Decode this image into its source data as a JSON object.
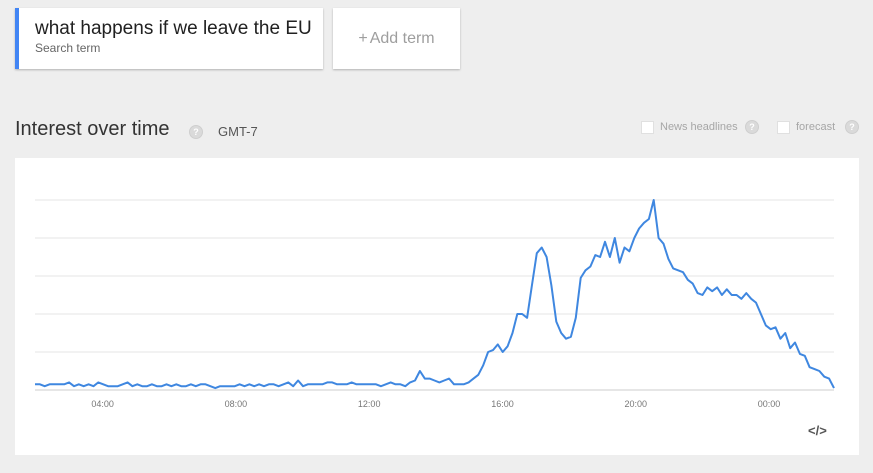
{
  "search_term": {
    "value": "what happens if we leave the EU",
    "sublabel": "Search term"
  },
  "add_term": {
    "plus": "+",
    "label": "Add term"
  },
  "section": {
    "title": "Interest over time",
    "help": "?",
    "timezone": "GMT-7"
  },
  "options": {
    "news_headlines": {
      "label": "News headlines",
      "help": "?"
    },
    "forecast": {
      "label": "forecast",
      "help": "?"
    }
  },
  "embed": {
    "icon": "embed-code-icon",
    "text": "</>"
  },
  "colors": {
    "accent": "#4285f4",
    "line": "#3f87e0",
    "grid": "#e6e6e6"
  },
  "chart_data": {
    "type": "line",
    "title": "",
    "xlabel": "",
    "ylabel": "",
    "ylim": [
      0,
      100
    ],
    "grid": true,
    "x_ticks": [
      "04:00",
      "08:00",
      "12:00",
      "16:00",
      "20:00",
      "00:00"
    ],
    "x_tick_hours": [
      4,
      8,
      12,
      16,
      20,
      24
    ],
    "x_range_hours": [
      1.97,
      25.95
    ],
    "series": [
      {
        "name": "what happens if we leave the EU",
        "values": [
          3,
          3,
          2,
          3,
          3,
          3,
          3,
          4,
          2,
          3,
          2,
          3,
          2,
          4,
          3,
          2,
          2,
          2,
          3,
          4,
          2,
          3,
          2,
          2,
          3,
          2,
          2,
          3,
          2,
          3,
          2,
          2,
          3,
          2,
          3,
          3,
          2,
          1,
          2,
          2,
          2,
          2,
          3,
          2,
          3,
          2,
          3,
          2,
          3,
          3,
          2,
          3,
          4,
          2,
          5,
          2,
          3,
          3,
          3,
          3,
          4,
          4,
          3,
          3,
          3,
          4,
          3,
          3,
          3,
          3,
          3,
          2,
          3,
          4,
          3,
          3,
          2,
          4,
          5,
          10,
          6,
          6,
          5,
          4,
          5,
          6,
          3,
          3,
          3,
          4,
          6,
          8,
          13,
          20,
          21,
          24,
          20,
          23,
          30,
          40,
          40,
          38,
          55,
          72,
          75,
          70,
          55,
          36,
          30,
          27,
          28,
          38,
          59,
          63,
          65,
          71,
          70,
          78,
          70,
          80,
          67,
          75,
          73,
          80,
          85,
          88,
          90,
          100,
          80,
          77,
          69,
          64,
          63,
          62,
          58,
          56,
          51,
          50,
          54,
          52,
          54,
          50,
          53,
          50,
          50,
          48,
          51,
          48,
          46,
          40,
          34,
          32,
          33,
          27,
          30,
          22,
          25,
          19,
          18,
          12,
          11,
          10,
          7,
          6,
          1
        ]
      }
    ]
  }
}
